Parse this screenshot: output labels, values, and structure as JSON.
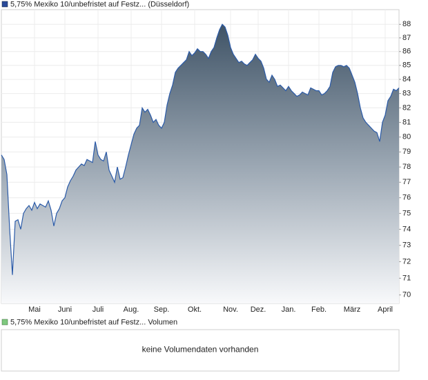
{
  "chart_data": {
    "type": "area",
    "log_scale": true,
    "grid": true,
    "ylim": [
      69.5,
      89.1
    ],
    "yticks": [
      70,
      71,
      72,
      73,
      74,
      75,
      76,
      77,
      78,
      79,
      80,
      81,
      82,
      83,
      84,
      85,
      86,
      87,
      88
    ],
    "categories": [
      null,
      null,
      null,
      null,
      null,
      null,
      null,
      null,
      null,
      null,
      null,
      null,
      "Mai",
      null,
      null,
      null,
      null,
      null,
      null,
      null,
      null,
      null,
      null,
      "Juni",
      null,
      null,
      null,
      null,
      null,
      null,
      null,
      null,
      null,
      null,
      null,
      "Juli",
      null,
      null,
      null,
      null,
      null,
      null,
      null,
      null,
      null,
      null,
      null,
      "Aug.",
      null,
      null,
      null,
      null,
      null,
      null,
      null,
      null,
      null,
      null,
      "Sep.",
      null,
      null,
      null,
      null,
      null,
      null,
      null,
      null,
      null,
      null,
      null,
      "Okt.",
      null,
      null,
      null,
      null,
      null,
      null,
      null,
      null,
      null,
      null,
      null,
      null,
      "Nov.",
      null,
      null,
      null,
      null,
      null,
      null,
      null,
      null,
      null,
      "Dez.",
      null,
      null,
      null,
      null,
      null,
      null,
      null,
      null,
      null,
      null,
      "Jan.",
      null,
      null,
      null,
      null,
      null,
      null,
      null,
      null,
      null,
      null,
      "Feb.",
      null,
      null,
      null,
      null,
      null,
      null,
      null,
      null,
      null,
      null,
      null,
      "März",
      null,
      null,
      null,
      null,
      null,
      null,
      null,
      null,
      null,
      null,
      null,
      "April",
      null,
      null,
      null,
      null,
      null
    ],
    "series": [
      {
        "name": "5,75% Mexiko 10/unbefristet auf Festz... (Düsseldorf)",
        "color": "#2a5aa8",
        "values": [
          78.8,
          78.5,
          77.5,
          74,
          71.2,
          74.5,
          74.6,
          74,
          75,
          75.3,
          75.5,
          75.2,
          75.7,
          75.3,
          75.6,
          75.5,
          75.4,
          75.8,
          75.2,
          74.2,
          75,
          75.3,
          75.8,
          76,
          76.7,
          77.1,
          77.4,
          77.8,
          78,
          78.2,
          78.1,
          78.5,
          78.4,
          78.3,
          79.7,
          78.8,
          78.5,
          78.4,
          79,
          77.8,
          77.4,
          77,
          78,
          77.2,
          77.3,
          78,
          78.8,
          79.5,
          80.2,
          80.6,
          80.8,
          82,
          81.7,
          81.9,
          81.5,
          81,
          81.2,
          80.8,
          80.6,
          81,
          82.2,
          83,
          83.6,
          84.5,
          84.8,
          85,
          85.2,
          85.4,
          86,
          85.7,
          85.9,
          86.2,
          86,
          86,
          85.8,
          85.5,
          86,
          86.3,
          87,
          87.6,
          88,
          87.8,
          87.2,
          86.3,
          85.8,
          85.5,
          85.2,
          85.3,
          85.1,
          85,
          85.2,
          85.4,
          85.8,
          85.5,
          85.3,
          84.8,
          84,
          83.8,
          84.3,
          84,
          83.5,
          83.6,
          83.4,
          83.2,
          83.5,
          83.2,
          83,
          82.8,
          82.9,
          83.1,
          83,
          82.9,
          83.4,
          83.3,
          83.2,
          83.2,
          82.9,
          83,
          83.2,
          83.5,
          84.5,
          84.9,
          85,
          85,
          84.9,
          85,
          84.8,
          84.3,
          83.8,
          83,
          82,
          81.3,
          81,
          80.8,
          80.6,
          80.4,
          80.3,
          79.7,
          81,
          81.5,
          82.5,
          82.8,
          83.3,
          83.2,
          83.4
        ]
      }
    ]
  },
  "volume_panel": {
    "legend": "5,75% Mexiko 10/unbefristet auf Festz... Volumen",
    "message": "keine Volumendaten vorhanden"
  }
}
